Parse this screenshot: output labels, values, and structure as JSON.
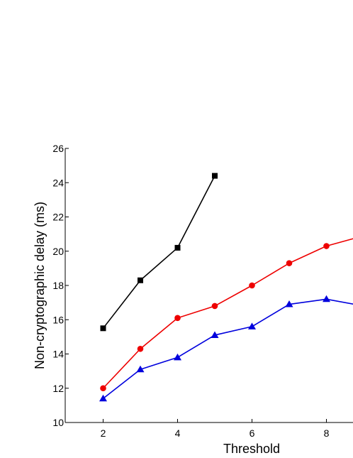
{
  "chart_data": {
    "type": "line",
    "title": "",
    "xlabel": "Threshold",
    "ylabel": "Non-cryptographic delay (ms)",
    "xlim": [
      1,
      8.75
    ],
    "ylim": [
      10,
      26
    ],
    "x_ticks": [
      2,
      4,
      6,
      8
    ],
    "y_ticks": [
      10,
      12,
      14,
      16,
      18,
      20,
      22,
      24,
      26
    ],
    "grid": false,
    "series": [
      {
        "color": "#000000",
        "marker": "square",
        "x": [
          2,
          3,
          4,
          5
        ],
        "values": [
          15.5,
          18.3,
          20.2,
          24.4
        ]
      },
      {
        "color": "#ee0000",
        "marker": "circle",
        "x": [
          2,
          3,
          4,
          5,
          6,
          7,
          8,
          9
        ],
        "values": [
          12.0,
          14.3,
          16.1,
          16.8,
          18.0,
          19.3,
          20.3,
          20.9
        ]
      },
      {
        "color": "#0000dd",
        "marker": "triangle",
        "x": [
          2,
          3,
          4,
          5,
          6,
          7,
          8,
          9
        ],
        "values": [
          11.4,
          13.1,
          13.8,
          15.1,
          15.6,
          16.9,
          17.2,
          16.8
        ]
      }
    ]
  }
}
